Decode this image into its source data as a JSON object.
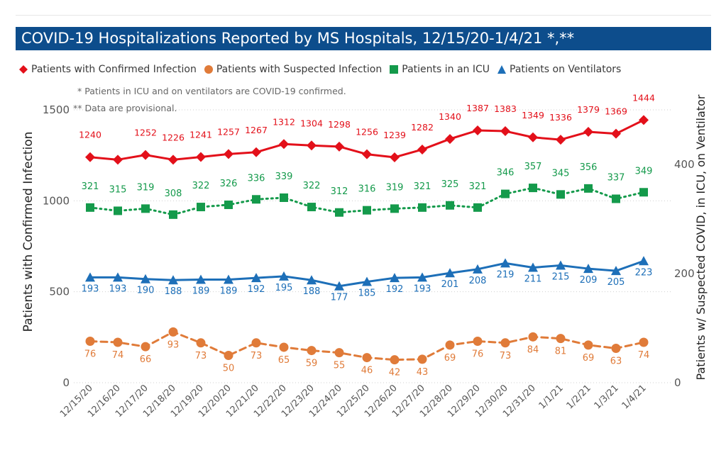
{
  "title": "COVID-19 Hospitalizations Reported by MS Hospitals, 12/15/20-1/4/21 *,**",
  "notes": [
    "* Patients in ICU and on ventilators are COVID-19 confirmed.",
    "** Data are provisional."
  ],
  "colors": {
    "title_bar": "#0d4d8c",
    "confirmed": "#e3101a",
    "suspected": "#e07b39",
    "icu": "#149a4b",
    "ventilators": "#1d6fb8"
  },
  "chart_data": {
    "type": "line",
    "categories": [
      "12/15/20",
      "12/16/20",
      "12/17/20",
      "12/18/20",
      "12/19/20",
      "12/20/20",
      "12/21/20",
      "12/22/20",
      "12/23/20",
      "12/24/20",
      "12/25/20",
      "12/26/20",
      "12/27/20",
      "12/28/20",
      "12/29/20",
      "12/30/20",
      "12/31/20",
      "1/1/21",
      "1/2/21",
      "1/3/21",
      "1/4/21"
    ],
    "ylabel": "Patients with Confirmed Infection",
    "y2label": "Patients w/ Suspected COVID, in ICU, on Ventilator",
    "ylim": [
      0,
      1500
    ],
    "y2lim": [
      0,
      500
    ],
    "yticks": [
      0,
      500,
      1000,
      1500
    ],
    "y2ticks": [
      0,
      200,
      400
    ],
    "grid": "horizontal dotted",
    "legend_position": "top",
    "series": [
      {
        "name": "Patients with Confirmed Infection",
        "axis": "left",
        "marker": "diamond",
        "line": "solid",
        "color": "#e3101a",
        "values": [
          1240,
          1226,
          1252,
          1226,
          1241,
          1257,
          1267,
          1312,
          1304,
          1298,
          1256,
          1239,
          1282,
          1340,
          1387,
          1383,
          1349,
          1336,
          1379,
          1369,
          1444
        ],
        "labels": [
          "1240",
          "",
          "1252",
          "1226",
          "1241",
          "1257",
          "1267",
          "1312",
          "1304",
          "1298",
          "1256",
          "1239",
          "1282",
          "1340",
          "1387",
          "1383",
          "1349",
          "1336",
          "1379",
          "1369",
          "1444"
        ]
      },
      {
        "name": "Patients with Suspected Infection",
        "axis": "right",
        "marker": "circle",
        "line": "dashed",
        "color": "#e07b39",
        "values": [
          76,
          74,
          66,
          93,
          73,
          50,
          73,
          65,
          59,
          55,
          46,
          42,
          43,
          69,
          76,
          73,
          84,
          81,
          69,
          63,
          74
        ]
      },
      {
        "name": "Patients in an ICU",
        "axis": "right",
        "marker": "square",
        "line": "dotted",
        "color": "#149a4b",
        "values": [
          321,
          315,
          319,
          308,
          322,
          326,
          336,
          339,
          322,
          312,
          316,
          319,
          321,
          325,
          321,
          346,
          357,
          345,
          356,
          337,
          349
        ]
      },
      {
        "name": "Patients on Ventilators",
        "axis": "right",
        "marker": "triangle",
        "line": "solid",
        "color": "#1d6fb8",
        "values": [
          193,
          193,
          190,
          188,
          189,
          189,
          192,
          195,
          188,
          177,
          185,
          192,
          193,
          201,
          208,
          219,
          211,
          215,
          209,
          205,
          223
        ]
      }
    ]
  }
}
